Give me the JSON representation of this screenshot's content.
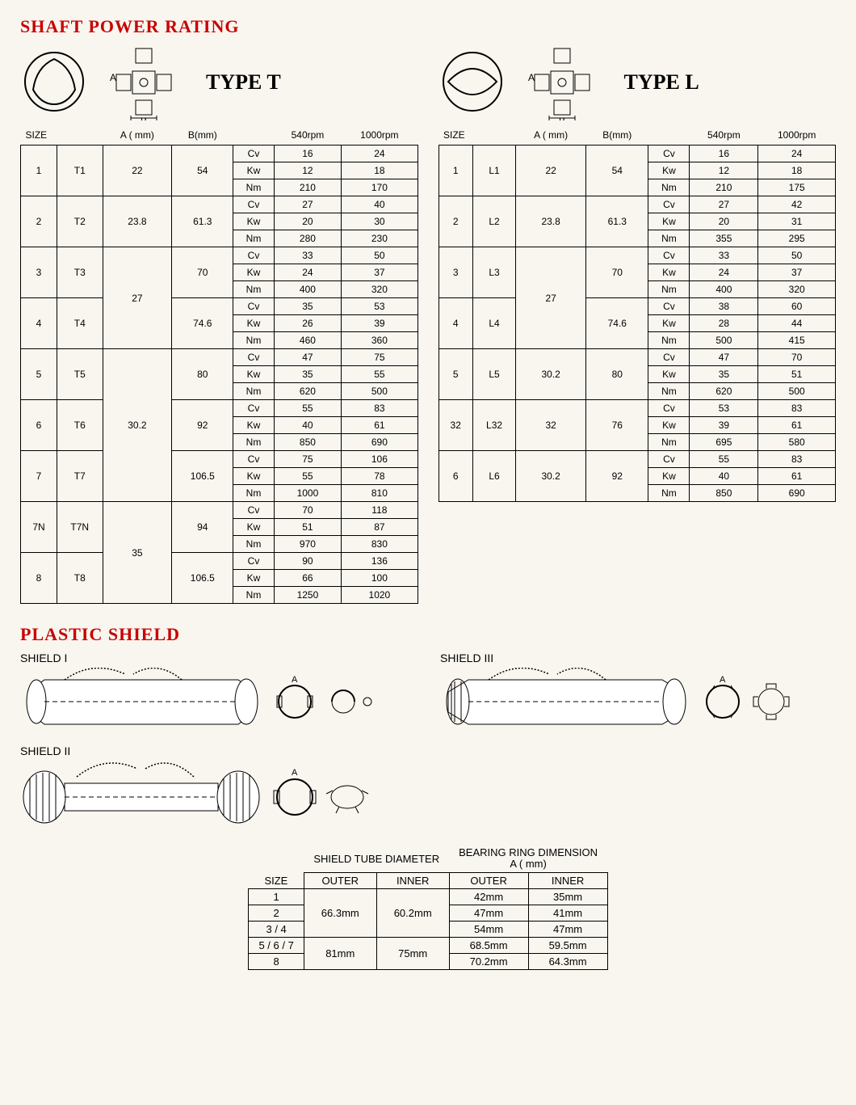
{
  "title_power": "SHAFT POWER RATING",
  "title_shield": "PLASTIC SHIELD",
  "type_t_label": "TYPE T",
  "type_l_label": "TYPE L",
  "headers": {
    "size": "SIZE",
    "a": "A ( mm)",
    "b": "B(mm)",
    "r540": "540rpm",
    "r1000": "1000rpm"
  },
  "units": [
    "Cv",
    "Kw",
    "Nm"
  ],
  "type_t": [
    {
      "n": "1",
      "code": "T1",
      "a": "22",
      "b": "54",
      "v": [
        [
          "16",
          "24"
        ],
        [
          "12",
          "18"
        ],
        [
          "210",
          "170"
        ]
      ]
    },
    {
      "n": "2",
      "code": "T2",
      "a": "23.8",
      "b": "61.3",
      "v": [
        [
          "27",
          "40"
        ],
        [
          "20",
          "30"
        ],
        [
          "280",
          "230"
        ]
      ]
    },
    {
      "n": "3",
      "code": "T3",
      "a": "27",
      "b": "70",
      "v": [
        [
          "33",
          "50"
        ],
        [
          "24",
          "37"
        ],
        [
          "400",
          "320"
        ]
      ]
    },
    {
      "n": "4",
      "code": "T4",
      "a": "",
      "b": "74.6",
      "v": [
        [
          "35",
          "53"
        ],
        [
          "26",
          "39"
        ],
        [
          "460",
          "360"
        ]
      ]
    },
    {
      "n": "5",
      "code": "T5",
      "a": "30.2",
      "b": "80",
      "v": [
        [
          "47",
          "75"
        ],
        [
          "35",
          "55"
        ],
        [
          "620",
          "500"
        ]
      ]
    },
    {
      "n": "6",
      "code": "T6",
      "a": "",
      "b": "92",
      "v": [
        [
          "55",
          "83"
        ],
        [
          "40",
          "61"
        ],
        [
          "850",
          "690"
        ]
      ]
    },
    {
      "n": "7",
      "code": "T7",
      "a": "",
      "b": "106.5",
      "v": [
        [
          "75",
          "106"
        ],
        [
          "55",
          "78"
        ],
        [
          "1000",
          "810"
        ]
      ]
    },
    {
      "n": "7N",
      "code": "T7N",
      "a": "35",
      "b": "94",
      "v": [
        [
          "70",
          "118"
        ],
        [
          "51",
          "87"
        ],
        [
          "970",
          "830"
        ]
      ]
    },
    {
      "n": "8",
      "code": "T8",
      "a": "",
      "b": "106.5",
      "v": [
        [
          "90",
          "136"
        ],
        [
          "66",
          "100"
        ],
        [
          "1250",
          "1020"
        ]
      ]
    }
  ],
  "type_t_a_spans": [
    1,
    1,
    2,
    0,
    3,
    0,
    0,
    2,
    0
  ],
  "type_l": [
    {
      "n": "1",
      "code": "L1",
      "a": "22",
      "b": "54",
      "v": [
        [
          "16",
          "24"
        ],
        [
          "12",
          "18"
        ],
        [
          "210",
          "175"
        ]
      ]
    },
    {
      "n": "2",
      "code": "L2",
      "a": "23.8",
      "b": "61.3",
      "v": [
        [
          "27",
          "42"
        ],
        [
          "20",
          "31"
        ],
        [
          "355",
          "295"
        ]
      ]
    },
    {
      "n": "3",
      "code": "L3",
      "a": "27",
      "b": "70",
      "v": [
        [
          "33",
          "50"
        ],
        [
          "24",
          "37"
        ],
        [
          "400",
          "320"
        ]
      ]
    },
    {
      "n": "4",
      "code": "L4",
      "a": "",
      "b": "74.6",
      "v": [
        [
          "38",
          "60"
        ],
        [
          "28",
          "44"
        ],
        [
          "500",
          "415"
        ]
      ]
    },
    {
      "n": "5",
      "code": "L5",
      "a": "30.2",
      "b": "80",
      "v": [
        [
          "47",
          "70"
        ],
        [
          "35",
          "51"
        ],
        [
          "620",
          "500"
        ]
      ]
    },
    {
      "n": "32",
      "code": "L32",
      "a": "32",
      "b": "76",
      "v": [
        [
          "53",
          "83"
        ],
        [
          "39",
          "61"
        ],
        [
          "695",
          "580"
        ]
      ]
    },
    {
      "n": "6",
      "code": "L6",
      "a": "30.2",
      "b": "92",
      "v": [
        [
          "55",
          "83"
        ],
        [
          "40",
          "61"
        ],
        [
          "850",
          "690"
        ]
      ]
    }
  ],
  "type_l_a_spans": [
    1,
    1,
    2,
    0,
    1,
    1,
    1
  ],
  "shields": {
    "s1": "SHIELD I",
    "s2": "SHIELD II",
    "s3": "SHIELD III"
  },
  "dim_headers": {
    "size": "SIZE",
    "tube": "SHIELD TUBE DIAMETER",
    "bearing": "BEARING RING DIMENSION",
    "bearing_sub": "A ( mm)",
    "outer": "OUTER",
    "inner": "INNER"
  },
  "dim_rows": [
    {
      "size": "1",
      "to": "66.3mm",
      "ti": "60.2mm",
      "bo": "42mm",
      "bi": "35mm",
      "tspan": 3
    },
    {
      "size": "2",
      "bo": "47mm",
      "bi": "41mm"
    },
    {
      "size": "3 / 4",
      "bo": "54mm",
      "bi": "47mm"
    },
    {
      "size": "5 / 6 / 7",
      "to": "81mm",
      "ti": "75mm",
      "bo": "68.5mm",
      "bi": "59.5mm",
      "tspan": 2
    },
    {
      "size": "8",
      "bo": "70.2mm",
      "bi": "64.3mm"
    }
  ]
}
